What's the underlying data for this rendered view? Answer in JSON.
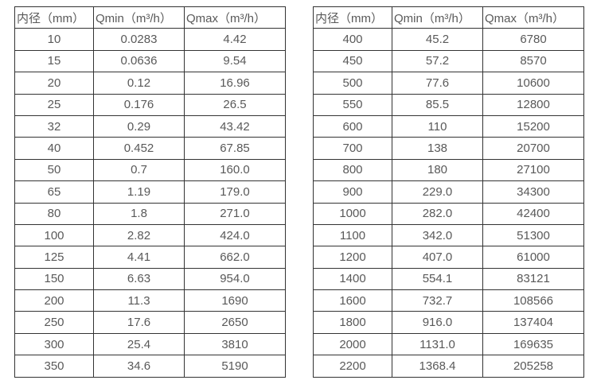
{
  "colors": {
    "border": "#333333",
    "text": "#595959",
    "background": "#ffffff"
  },
  "tables": [
    {
      "name": "flow-rate-table-small-diameters",
      "headers": [
        "内径（mm）",
        "Qmin（m³/h）",
        "Qmax（m³/h）"
      ],
      "rows": [
        [
          "10",
          "0.0283",
          "4.42"
        ],
        [
          "15",
          "0.0636",
          "9.54"
        ],
        [
          "20",
          "0.12",
          "16.96"
        ],
        [
          "25",
          "0.176",
          "26.5"
        ],
        [
          "32",
          "0.29",
          "43.42"
        ],
        [
          "40",
          "0.452",
          "67.85"
        ],
        [
          "50",
          "0.7",
          "160.0"
        ],
        [
          "65",
          "1.19",
          "179.0"
        ],
        [
          "80",
          "1.8",
          "271.0"
        ],
        [
          "100",
          "2.82",
          "424.0"
        ],
        [
          "125",
          "4.41",
          "662.0"
        ],
        [
          "150",
          "6.63",
          "954.0"
        ],
        [
          "200",
          "11.3",
          "1690"
        ],
        [
          "250",
          "17.6",
          "2650"
        ],
        [
          "300",
          "25.4",
          "3810"
        ],
        [
          "350",
          "34.6",
          "5190"
        ]
      ]
    },
    {
      "name": "flow-rate-table-large-diameters",
      "headers": [
        "内径（mm）",
        "Qmin（m³/h）",
        "Qmax（m³/h）"
      ],
      "rows": [
        [
          "400",
          "45.2",
          "6780"
        ],
        [
          "450",
          "57.2",
          "8570"
        ],
        [
          "500",
          "77.6",
          "10600"
        ],
        [
          "550",
          "85.5",
          "12800"
        ],
        [
          "600",
          "110",
          "15200"
        ],
        [
          "700",
          "138",
          "20700"
        ],
        [
          "800",
          "180",
          "27100"
        ],
        [
          "900",
          "229.0",
          "34300"
        ],
        [
          "1000",
          "282.0",
          "42400"
        ],
        [
          "1100",
          "342.0",
          "51300"
        ],
        [
          "1200",
          "407.0",
          "61000"
        ],
        [
          "1400",
          "554.1",
          "83121"
        ],
        [
          "1600",
          "732.7",
          "108566"
        ],
        [
          "1800",
          "916.0",
          "137404"
        ],
        [
          "2000",
          "1131.0",
          "169635"
        ],
        [
          "2200",
          "1368.4",
          "205258"
        ]
      ]
    }
  ]
}
